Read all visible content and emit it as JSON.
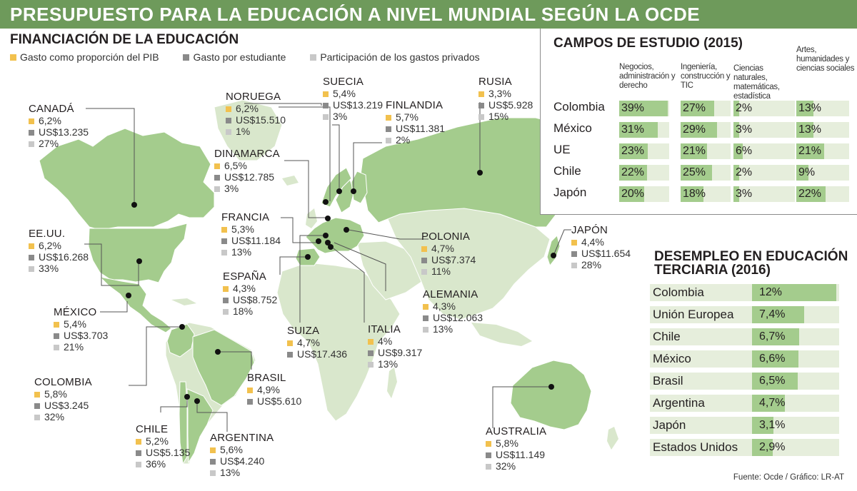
{
  "title": "PRESUPUESTO PARA LA EDUCACIÓN A NIVEL MUNDIAL SEGÚN LA OCDE",
  "financiacion": {
    "title": "FINANCIACIÓN DE LA EDUCACIÓN",
    "legend": [
      {
        "label": "Gasto como proporción del PIB",
        "color": "#f2c14e"
      },
      {
        "label": "Gasto por estudiante",
        "color": "#8a8a8a"
      },
      {
        "label": "Participación de los gastos privados",
        "color": "#c8c8c8"
      }
    ]
  },
  "countries": [
    {
      "name": "CANADÁ",
      "pib": "6,2%",
      "estudiante": "US$13.235",
      "privados": "27%"
    },
    {
      "name": "NORUEGA",
      "pib": "6,2%",
      "estudiante": "US$15.510",
      "privados": "1%"
    },
    {
      "name": "SUECIA",
      "pib": "5,4%",
      "estudiante": "US$13.219",
      "privados": "3%"
    },
    {
      "name": "FINLANDIA",
      "pib": "5,7%",
      "estudiante": "US$11.381",
      "privados": "2%"
    },
    {
      "name": "RUSIA",
      "pib": "3,3%",
      "estudiante": "US$5.928",
      "privados": "15%"
    },
    {
      "name": "DINAMARCA",
      "pib": "6,5%",
      "estudiante": "US$12.785",
      "privados": "3%"
    },
    {
      "name": "EE.UU.",
      "pib": "6,2%",
      "estudiante": "US$16.268",
      "privados": "33%"
    },
    {
      "name": "FRANCIA",
      "pib": "5,3%",
      "estudiante": "US$11.184",
      "privados": "13%"
    },
    {
      "name": "POLONIA",
      "pib": "4,7%",
      "estudiante": "US$7.374",
      "privados": "11%"
    },
    {
      "name": "JAPÓN",
      "pib": "4,4%",
      "estudiante": "US$11.654",
      "privados": "28%"
    },
    {
      "name": "ESPAÑA",
      "pib": "4,3%",
      "estudiante": "US$8.752",
      "privados": "18%"
    },
    {
      "name": "ALEMANIA",
      "pib": "4,3%",
      "estudiante": "US$12.063",
      "privados": "13%"
    },
    {
      "name": "MÉXICO",
      "pib": "5,4%",
      "estudiante": "US$3.703",
      "privados": "21%"
    },
    {
      "name": "SUIZA",
      "pib": "4,7%",
      "estudiante": "US$17.436",
      "privados": ""
    },
    {
      "name": "ITALIA",
      "pib": "4%",
      "estudiante": "US$9.317",
      "privados": "13%"
    },
    {
      "name": "BRASIL",
      "pib": "4,9%",
      "estudiante": "US$5.610",
      "privados": ""
    },
    {
      "name": "COLOMBIA",
      "pib": "5,8%",
      "estudiante": "US$3.245",
      "privados": "32%"
    },
    {
      "name": "CHILE",
      "pib": "5,2%",
      "estudiante": "US$5.135",
      "privados": "36%"
    },
    {
      "name": "ARGENTINA",
      "pib": "5,6%",
      "estudiante": "US$4.240",
      "privados": "13%"
    },
    {
      "name": "AUSTRALIA",
      "pib": "5,8%",
      "estudiante": "US$11.149",
      "privados": "32%"
    }
  ],
  "chart_data": [
    {
      "type": "table",
      "title": "CAMPOS DE ESTUDIO (2015)",
      "columns": [
        "Negocios, administración y derecho",
        "Ingeniería, construcción y TIC",
        "Ciencias naturales, matemáticas, estadística",
        "Artes, humanidades y ciencias sociales"
      ],
      "rows": [
        {
          "name": "Colombia",
          "values": [
            39,
            27,
            2,
            13
          ],
          "labels": [
            "39%",
            "27%",
            "2%",
            "13%"
          ]
        },
        {
          "name": "México",
          "values": [
            31,
            29,
            3,
            13
          ],
          "labels": [
            "31%",
            "29%",
            "3%",
            "13%"
          ]
        },
        {
          "name": "UE",
          "values": [
            23,
            21,
            6,
            21
          ],
          "labels": [
            "23%",
            "21%",
            "6%",
            "21%"
          ]
        },
        {
          "name": "Chile",
          "values": [
            22,
            25,
            2,
            9
          ],
          "labels": [
            "22%",
            "25%",
            "2%",
            "9%"
          ]
        },
        {
          "name": "Japón",
          "values": [
            20,
            18,
            3,
            22
          ],
          "labels": [
            "20%",
            "18%",
            "3%",
            "22%"
          ]
        }
      ]
    },
    {
      "type": "bar",
      "title": "DESEMPLEO EN EDUCACIÓN TERCIARIA (2016)",
      "categories": [
        "Colombia",
        "Unión Europea",
        "Chile",
        "México",
        "Brasil",
        "Argentina",
        "Japón",
        "Estados Unidos"
      ],
      "values": [
        12,
        7.4,
        6.7,
        6.6,
        6.5,
        4.7,
        3.1,
        2.9
      ],
      "labels": [
        "12%",
        "7,4%",
        "6,7%",
        "6,6%",
        "6,5%",
        "4,7%",
        "3,1%",
        "2,9%"
      ],
      "ylim": [
        0,
        12.2
      ]
    }
  ],
  "source": "Fuente: Ocde / Gráfico: LR-AT",
  "colors": {
    "banner": "#6e9a5b",
    "land_highlight": "#a4cc8d",
    "land_base": "#d9e7cc",
    "bar": "#a4cc8d",
    "bar_bg": "#e6eedc"
  }
}
